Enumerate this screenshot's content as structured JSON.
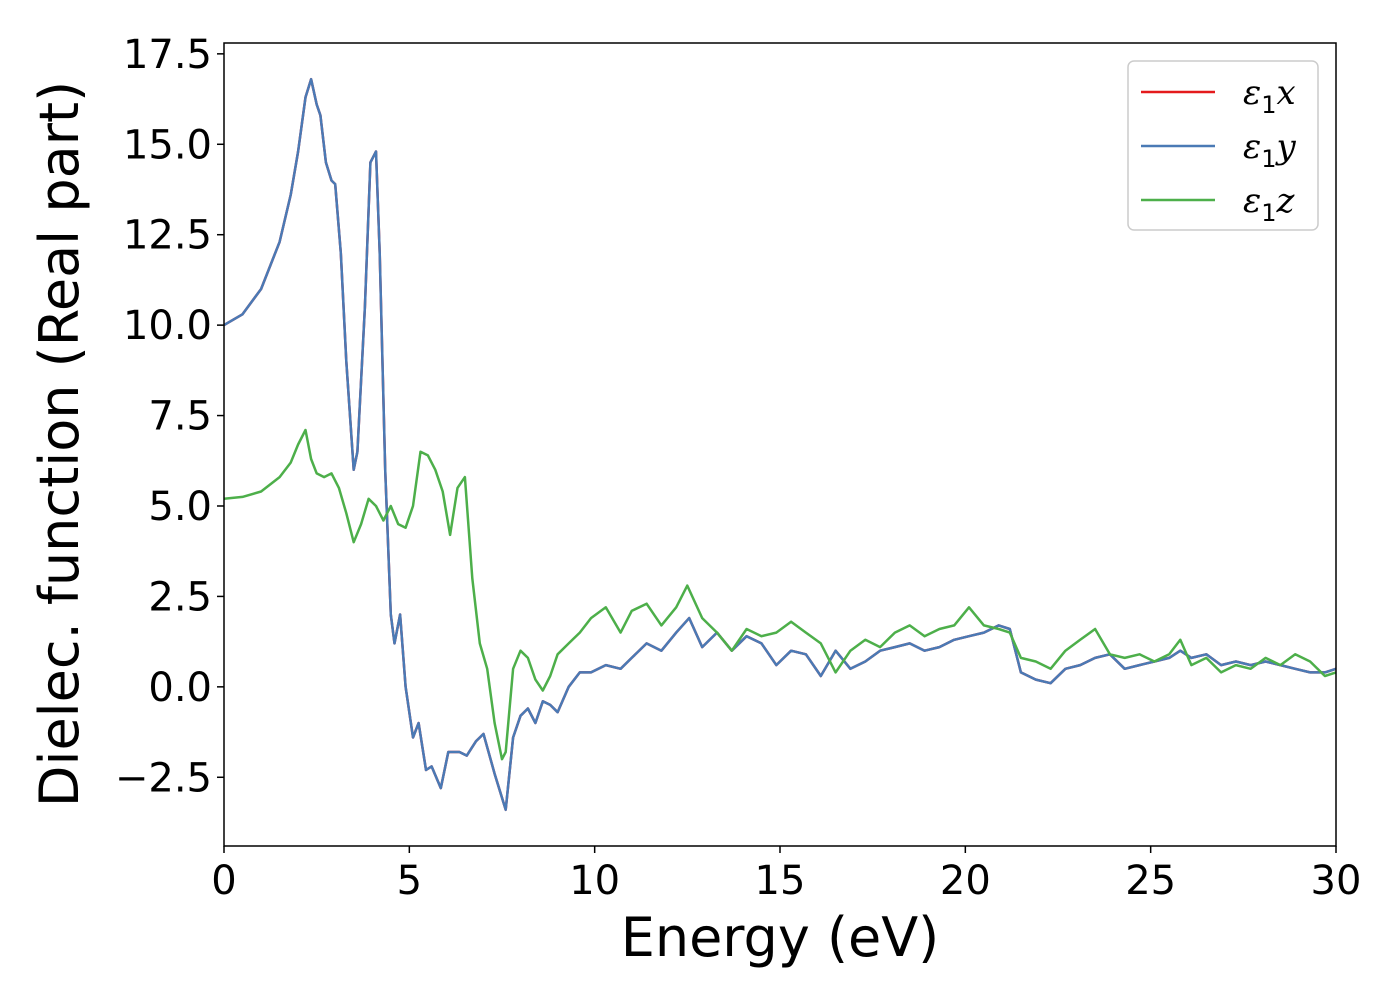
{
  "chart_data": {
    "type": "line",
    "xlabel": "Energy (eV)",
    "ylabel": "Dielec. function (Real part)",
    "xlim": [
      0,
      30
    ],
    "ylim": [
      -4.4,
      17.8
    ],
    "xticks": [
      0,
      5,
      10,
      15,
      20,
      25,
      30
    ],
    "xtick_labels": [
      "0",
      "5",
      "10",
      "15",
      "20",
      "25",
      "30"
    ],
    "yticks": [
      -2.5,
      0.0,
      2.5,
      5.0,
      7.5,
      10.0,
      12.5,
      15.0,
      17.5
    ],
    "ytick_labels": [
      "−2.5",
      "0.0",
      "2.5",
      "5.0",
      "7.5",
      "10.0",
      "12.5",
      "15.0",
      "17.5"
    ],
    "grid": false,
    "legend_position": "top-right",
    "series": [
      {
        "name": "ε1x",
        "legend_symbol": "ε",
        "legend_sub": "1",
        "legend_var": "x",
        "color": "#e41a1c",
        "x": [
          0,
          0.5,
          1.0,
          1.5,
          1.8,
          2.0,
          2.2,
          2.35,
          2.5,
          2.6,
          2.75,
          2.9,
          3.0,
          3.15,
          3.3,
          3.5,
          3.6,
          3.8,
          3.95,
          4.1,
          4.2,
          4.35,
          4.5,
          4.6,
          4.75,
          4.9,
          5.1,
          5.25,
          5.45,
          5.6,
          5.85,
          6.05,
          6.35,
          6.55,
          6.8,
          7.0,
          7.3,
          7.6,
          7.8,
          8.0,
          8.2,
          8.4,
          8.6,
          8.8,
          9.0,
          9.3,
          9.6,
          9.9,
          10.3,
          10.7,
          11.0,
          11.4,
          11.8,
          12.2,
          12.55,
          12.9,
          13.3,
          13.7,
          14.1,
          14.5,
          14.9,
          15.3,
          15.7,
          16.1,
          16.5,
          16.9,
          17.3,
          17.7,
          18.1,
          18.5,
          18.9,
          19.3,
          19.7,
          20.1,
          20.5,
          20.9,
          21.2,
          21.5,
          21.9,
          22.3,
          22.7,
          23.1,
          23.5,
          23.9,
          24.3,
          24.7,
          25.1,
          25.5,
          25.8,
          26.1,
          26.5,
          26.9,
          27.3,
          27.7,
          28.1,
          28.5,
          28.9,
          29.3,
          29.7,
          30.0
        ],
        "values": [
          10.0,
          10.3,
          11.0,
          12.3,
          13.6,
          14.8,
          16.3,
          16.8,
          16.1,
          15.8,
          14.5,
          14.0,
          13.9,
          12.0,
          9.0,
          6.0,
          6.5,
          10.5,
          14.5,
          14.8,
          12.0,
          6.0,
          2.0,
          1.2,
          2.0,
          0.0,
          -1.4,
          -1.0,
          -2.3,
          -2.2,
          -2.8,
          -1.8,
          -1.8,
          -1.9,
          -1.5,
          -1.3,
          -2.4,
          -3.4,
          -1.4,
          -0.8,
          -0.6,
          -1.0,
          -0.4,
          -0.5,
          -0.7,
          0.0,
          0.4,
          0.4,
          0.6,
          0.5,
          0.8,
          1.2,
          1.0,
          1.5,
          1.9,
          1.1,
          1.5,
          1.0,
          1.4,
          1.2,
          0.6,
          1.0,
          0.9,
          0.3,
          1.0,
          0.5,
          0.7,
          1.0,
          1.1,
          1.2,
          1.0,
          1.1,
          1.3,
          1.4,
          1.5,
          1.7,
          1.6,
          0.4,
          0.2,
          0.1,
          0.5,
          0.6,
          0.8,
          0.9,
          0.5,
          0.6,
          0.7,
          0.8,
          1.0,
          0.8,
          0.9,
          0.6,
          0.7,
          0.6,
          0.7,
          0.6,
          0.5,
          0.4,
          0.4,
          0.5
        ]
      },
      {
        "name": "ε1y",
        "legend_symbol": "ε",
        "legend_sub": "1",
        "legend_var": "y",
        "color": "#4a7ab5",
        "x": [
          0,
          0.5,
          1.0,
          1.5,
          1.8,
          2.0,
          2.2,
          2.35,
          2.5,
          2.6,
          2.75,
          2.9,
          3.0,
          3.15,
          3.3,
          3.5,
          3.6,
          3.8,
          3.95,
          4.1,
          4.2,
          4.35,
          4.5,
          4.6,
          4.75,
          4.9,
          5.1,
          5.25,
          5.45,
          5.6,
          5.85,
          6.05,
          6.35,
          6.55,
          6.8,
          7.0,
          7.3,
          7.6,
          7.8,
          8.0,
          8.2,
          8.4,
          8.6,
          8.8,
          9.0,
          9.3,
          9.6,
          9.9,
          10.3,
          10.7,
          11.0,
          11.4,
          11.8,
          12.2,
          12.55,
          12.9,
          13.3,
          13.7,
          14.1,
          14.5,
          14.9,
          15.3,
          15.7,
          16.1,
          16.5,
          16.9,
          17.3,
          17.7,
          18.1,
          18.5,
          18.9,
          19.3,
          19.7,
          20.1,
          20.5,
          20.9,
          21.2,
          21.5,
          21.9,
          22.3,
          22.7,
          23.1,
          23.5,
          23.9,
          24.3,
          24.7,
          25.1,
          25.5,
          25.8,
          26.1,
          26.5,
          26.9,
          27.3,
          27.7,
          28.1,
          28.5,
          28.9,
          29.3,
          29.7,
          30.0
        ],
        "values": [
          10.0,
          10.3,
          11.0,
          12.3,
          13.6,
          14.8,
          16.3,
          16.8,
          16.1,
          15.8,
          14.5,
          14.0,
          13.9,
          12.0,
          9.0,
          6.0,
          6.5,
          10.5,
          14.5,
          14.8,
          12.0,
          6.0,
          2.0,
          1.2,
          2.0,
          0.0,
          -1.4,
          -1.0,
          -2.3,
          -2.2,
          -2.8,
          -1.8,
          -1.8,
          -1.9,
          -1.5,
          -1.3,
          -2.4,
          -3.4,
          -1.4,
          -0.8,
          -0.6,
          -1.0,
          -0.4,
          -0.5,
          -0.7,
          0.0,
          0.4,
          0.4,
          0.6,
          0.5,
          0.8,
          1.2,
          1.0,
          1.5,
          1.9,
          1.1,
          1.5,
          1.0,
          1.4,
          1.2,
          0.6,
          1.0,
          0.9,
          0.3,
          1.0,
          0.5,
          0.7,
          1.0,
          1.1,
          1.2,
          1.0,
          1.1,
          1.3,
          1.4,
          1.5,
          1.7,
          1.6,
          0.4,
          0.2,
          0.1,
          0.5,
          0.6,
          0.8,
          0.9,
          0.5,
          0.6,
          0.7,
          0.8,
          1.0,
          0.8,
          0.9,
          0.6,
          0.7,
          0.6,
          0.7,
          0.6,
          0.5,
          0.4,
          0.4,
          0.5
        ]
      },
      {
        "name": "ε1z",
        "legend_symbol": "ε",
        "legend_sub": "1",
        "legend_var": "z",
        "color": "#4daf4a",
        "x": [
          0,
          0.5,
          1.0,
          1.5,
          1.8,
          2.0,
          2.2,
          2.35,
          2.5,
          2.7,
          2.9,
          3.1,
          3.3,
          3.5,
          3.7,
          3.9,
          4.1,
          4.3,
          4.5,
          4.7,
          4.9,
          5.1,
          5.3,
          5.5,
          5.7,
          5.9,
          6.1,
          6.3,
          6.5,
          6.7,
          6.9,
          7.1,
          7.3,
          7.5,
          7.6,
          7.8,
          8.0,
          8.2,
          8.4,
          8.6,
          8.8,
          9.0,
          9.3,
          9.6,
          9.9,
          10.3,
          10.7,
          11.0,
          11.4,
          11.8,
          12.2,
          12.5,
          12.9,
          13.3,
          13.7,
          14.1,
          14.5,
          14.9,
          15.3,
          15.7,
          16.1,
          16.5,
          16.9,
          17.3,
          17.7,
          18.1,
          18.5,
          18.9,
          19.3,
          19.7,
          20.1,
          20.5,
          20.9,
          21.2,
          21.5,
          21.9,
          22.3,
          22.7,
          23.1,
          23.5,
          23.9,
          24.3,
          24.7,
          25.1,
          25.5,
          25.8,
          26.1,
          26.5,
          26.9,
          27.3,
          27.7,
          28.1,
          28.5,
          28.9,
          29.3,
          29.7,
          30.0
        ],
        "values": [
          5.2,
          5.25,
          5.4,
          5.8,
          6.2,
          6.7,
          7.1,
          6.3,
          5.9,
          5.8,
          5.9,
          5.5,
          4.8,
          4.0,
          4.5,
          5.2,
          5.0,
          4.6,
          5.0,
          4.5,
          4.4,
          5.0,
          6.5,
          6.4,
          6.0,
          5.4,
          4.2,
          5.5,
          5.8,
          3.0,
          1.2,
          0.5,
          -1.0,
          -2.0,
          -1.8,
          0.5,
          1.0,
          0.8,
          0.2,
          -0.1,
          0.3,
          0.9,
          1.2,
          1.5,
          1.9,
          2.2,
          1.5,
          2.1,
          2.3,
          1.7,
          2.2,
          2.8,
          1.9,
          1.5,
          1.0,
          1.6,
          1.4,
          1.5,
          1.8,
          1.5,
          1.2,
          0.4,
          1.0,
          1.3,
          1.1,
          1.5,
          1.7,
          1.4,
          1.6,
          1.7,
          2.2,
          1.7,
          1.6,
          1.5,
          0.8,
          0.7,
          0.5,
          1.0,
          1.3,
          1.6,
          0.9,
          0.8,
          0.9,
          0.7,
          0.9,
          1.3,
          0.6,
          0.8,
          0.4,
          0.6,
          0.5,
          0.8,
          0.6,
          0.9,
          0.7,
          0.3,
          0.4
        ]
      }
    ]
  }
}
